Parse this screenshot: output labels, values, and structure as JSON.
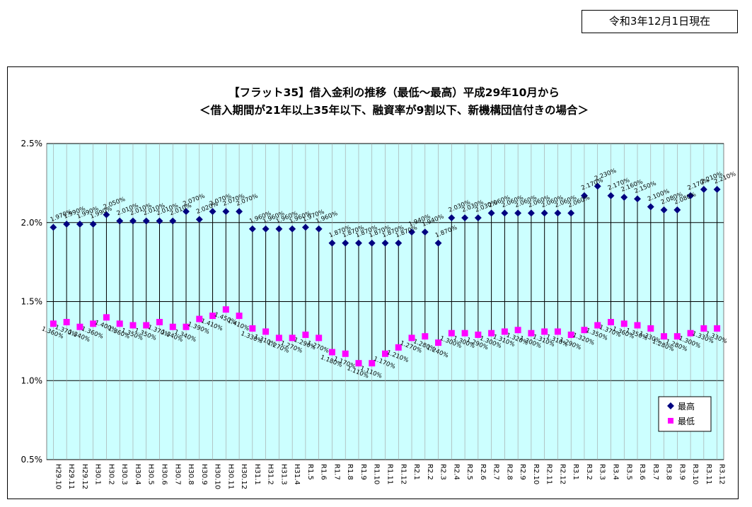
{
  "header": {
    "date_text": "令和3年12月1日現在"
  },
  "chart_data": {
    "type": "line",
    "title": "【フラット35】借入金利の推移（最低～最高）平成29年10月から",
    "subtitle": "＜借入期間が21年以上35年以下、融資率が9割以下、新機構団信付きの場合＞",
    "ylim": [
      0.5,
      2.5
    ],
    "yticks": [
      "0.5%",
      "1.0%",
      "1.5%",
      "2.0%",
      "2.5%"
    ],
    "grid": true,
    "legend_position": "bottom-right",
    "colors": {
      "plot_bg": "#ccffff",
      "high": "#000080",
      "low": "#ff00ff"
    },
    "categories": [
      "H29.10",
      "H29.11",
      "H29.12",
      "H30.1",
      "H30.2",
      "H30.3",
      "H30.4",
      "H30.5",
      "H30.6",
      "H30.7",
      "H30.8",
      "H30.9",
      "H30.10",
      "H30.11",
      "H30.12",
      "H31.1",
      "H31.2",
      "H31.3",
      "H31.4",
      "R1.5",
      "R1.6",
      "R1.7",
      "R1.8",
      "R1.9",
      "R1.10",
      "R1.11",
      "R1.12",
      "R2.1",
      "R2.2",
      "R2.3",
      "R2.4",
      "R2.5",
      "R2.6",
      "R2.7",
      "R2.8",
      "R2.9",
      "R2.10",
      "R2.11",
      "R2.12",
      "R3.1",
      "R3.2",
      "R3.3",
      "R3.4",
      "R3.5",
      "R3.6",
      "R3.7",
      "R3.8",
      "R3.9",
      "R3.10",
      "R3.11",
      "R3.12"
    ],
    "series": [
      {
        "name": "最高",
        "values": [
          1.97,
          1.99,
          1.99,
          1.99,
          2.05,
          2.01,
          2.01,
          2.01,
          2.01,
          2.01,
          2.07,
          2.02,
          2.07,
          2.07,
          2.07,
          1.96,
          1.96,
          1.96,
          1.96,
          1.97,
          1.96,
          1.87,
          1.87,
          1.87,
          1.87,
          1.87,
          1.87,
          1.94,
          1.94,
          1.87,
          2.03,
          2.03,
          2.03,
          2.06,
          2.06,
          2.06,
          2.06,
          2.06,
          2.06,
          2.06,
          2.17,
          2.23,
          2.17,
          2.16,
          2.15,
          2.1,
          2.08,
          2.08,
          2.17,
          2.21,
          2.21
        ],
        "labels": [
          "1.970%",
          "1.990%",
          "1.990%",
          "1.990%",
          "2.050%",
          "2.010%",
          "2.010%",
          "2.010%",
          "2.010%",
          "2.010%",
          "2.070%",
          "2.020%",
          "2.070%",
          "2.070%",
          "2.070%",
          "1.960%",
          "1.960%",
          "1.960%",
          "1.960%",
          "1.970%",
          "1.960%",
          "1.870%",
          "1.870%",
          "1.870%",
          "1.870%",
          "1.870%",
          "1.870%",
          "1.940%",
          "1.940%",
          "1.870%",
          "2.030%",
          "2.030%",
          "2.030%",
          "2.060%",
          "2.060%",
          "2.060%",
          "2.060%",
          "2.060%",
          "2.060%",
          "2.060%",
          "2.170%",
          "2.230%",
          "2.170%",
          "2.160%",
          "2.150%",
          "2.100%",
          "2.080%",
          "2.080%",
          "2.170%",
          "2.210%",
          "2.210%"
        ]
      },
      {
        "name": "最低",
        "values": [
          1.36,
          1.37,
          1.34,
          1.36,
          1.4,
          1.36,
          1.35,
          1.35,
          1.37,
          1.34,
          1.34,
          1.39,
          1.41,
          1.45,
          1.41,
          1.33,
          1.31,
          1.27,
          1.27,
          1.29,
          1.27,
          1.18,
          1.17,
          1.11,
          1.11,
          1.17,
          1.21,
          1.27,
          1.28,
          1.24,
          1.3,
          1.3,
          1.29,
          1.3,
          1.31,
          1.32,
          1.3,
          1.31,
          1.31,
          1.29,
          1.32,
          1.35,
          1.37,
          1.36,
          1.35,
          1.33,
          1.28,
          1.28,
          1.3,
          1.33,
          1.33
        ],
        "labels": [
          "1.360%",
          "1.370%",
          "1.340%",
          "1.360%",
          "1.400%",
          "1.360%",
          "1.350%",
          "1.350%",
          "1.370%",
          "1.340%",
          "1.340%",
          "1.390%",
          "1.410%",
          "1.450%",
          "1.410%",
          "1.330%",
          "1.310%",
          "1.270%",
          "1.270%",
          "1.290%",
          "1.270%",
          "1.180%",
          "1.170%",
          "1.110%",
          "1.110%",
          "1.170%",
          "1.210%",
          "1.270%",
          "1.280%",
          "1.240%",
          "1.300%",
          "1.300%",
          "1.290%",
          "1.300%",
          "1.310%",
          "1.320%",
          "1.300%",
          "1.310%",
          "1.310%",
          "1.290%",
          "1.320%",
          "1.350%",
          "1.370%",
          "1.360%",
          "1.350%",
          "1.330%",
          "1.280%",
          "1.280%",
          "1.300%",
          "1.330%",
          "1.330%"
        ]
      }
    ],
    "legend": {
      "high_label": "最高",
      "low_label": "最低"
    }
  }
}
